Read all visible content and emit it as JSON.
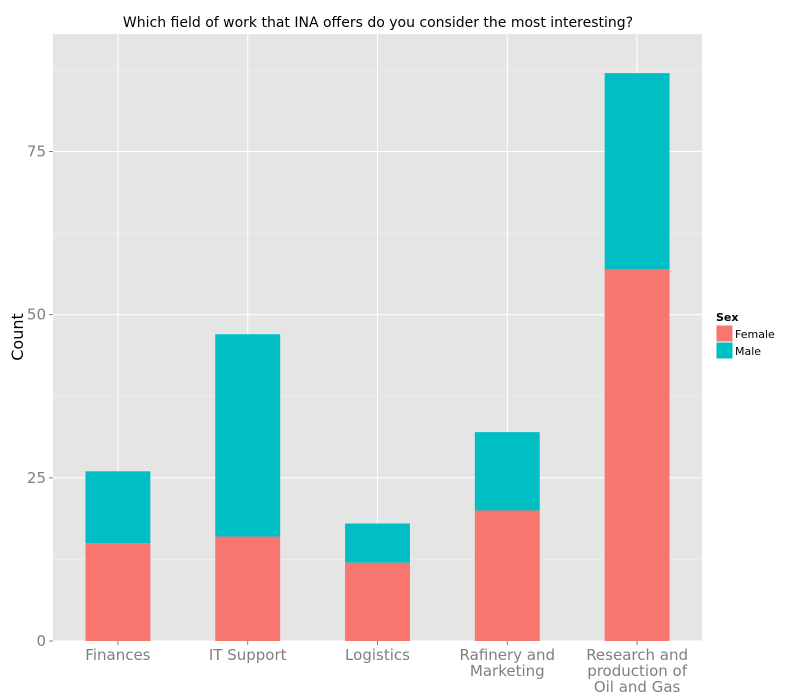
{
  "chart_data": {
    "type": "bar",
    "stacked": true,
    "title": "Which field of work that INA offers do you consider the most interesting?",
    "xlabel": "",
    "ylabel": "Count",
    "ylim": [
      0,
      93
    ],
    "yticks": [
      0,
      25,
      50,
      75
    ],
    "grid": true,
    "legend_position": "right",
    "legend_title": "Sex",
    "categories": [
      [
        "Finances"
      ],
      [
        "IT Support"
      ],
      [
        "Logistics"
      ],
      [
        "Rafinery and",
        "Marketing"
      ],
      [
        "Research and",
        "production of",
        "Oil and Gas"
      ]
    ],
    "series": [
      {
        "name": "Female",
        "color": "#F8766D",
        "values": [
          15,
          16,
          12,
          20,
          57
        ]
      },
      {
        "name": "Male",
        "color": "#00BFC4",
        "values": [
          11,
          31,
          6,
          12,
          30
        ]
      }
    ]
  }
}
